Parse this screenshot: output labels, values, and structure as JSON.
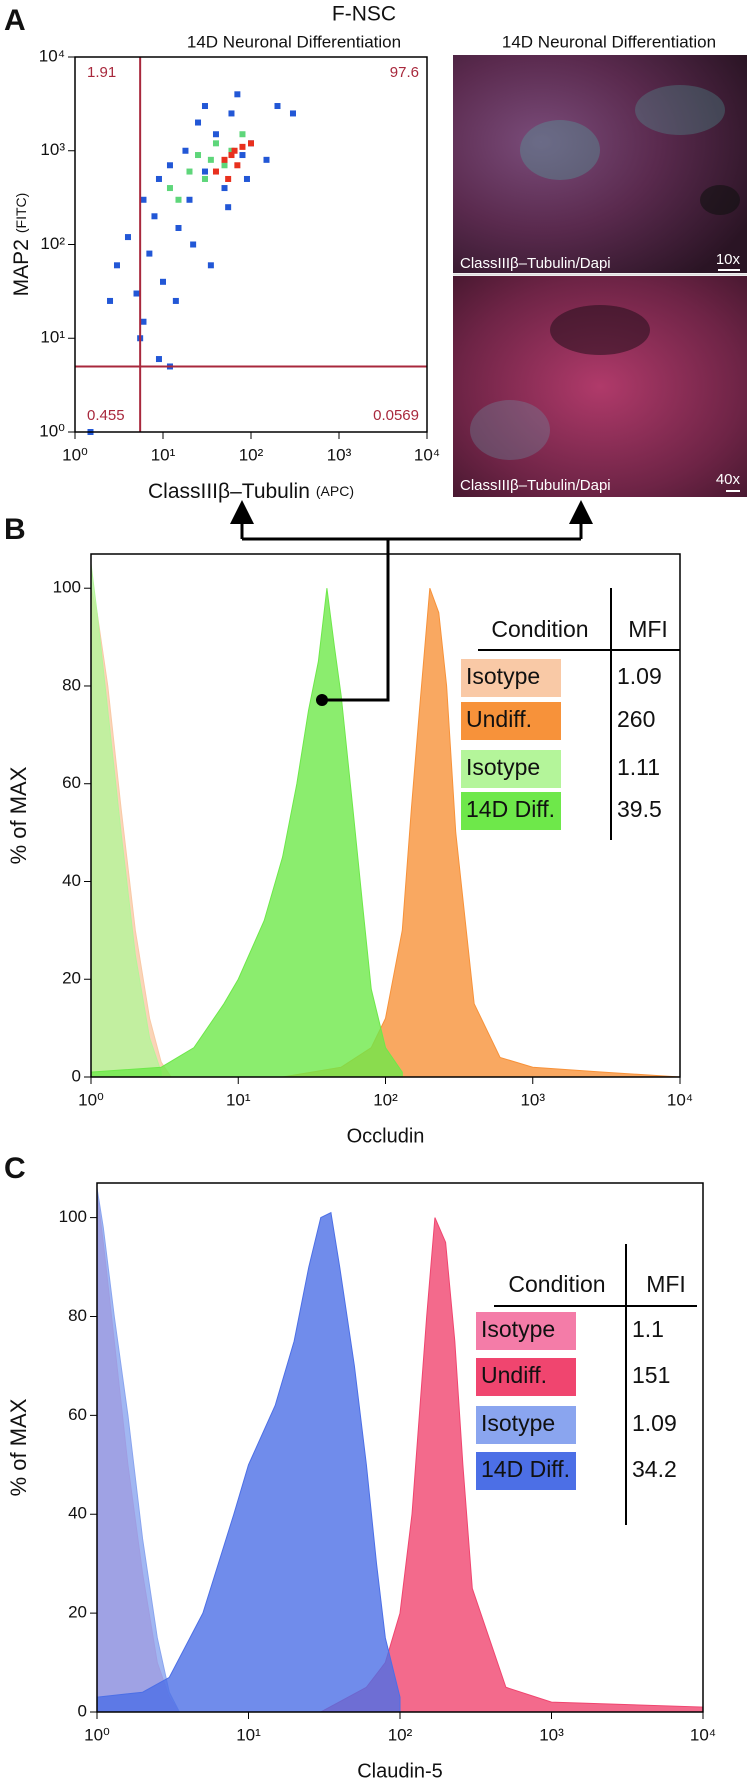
{
  "panel_labels": [
    "A",
    "B",
    "C"
  ],
  "micrographs": {
    "title": "14D Neuronal Differentiation",
    "images": [
      {
        "caption": "ClassIIIβ–Tubulin/Dapi",
        "scale": "10x"
      },
      {
        "caption": "ClassIIIβ–Tubulin/Dapi",
        "scale": "40x"
      }
    ]
  },
  "chart_data": [
    {
      "type": "scatter",
      "title": "F-NSC",
      "subtitle": "14D Neuronal Differentiation",
      "xlabel": "ClassIIIβ–Tubulin",
      "xlabel_unit": "(APC)",
      "ylabel": "MAP2",
      "ylabel_unit": "(FITC)",
      "log_x": true,
      "log_y": true,
      "xlim": [
        1,
        10000
      ],
      "ylim": [
        1,
        10000
      ],
      "xticks": [
        {
          "value": 1,
          "label": "10⁰"
        },
        {
          "value": 10,
          "label": "10¹"
        },
        {
          "value": 100,
          "label": "10²"
        },
        {
          "value": 1000,
          "label": "10³"
        },
        {
          "value": 10000,
          "label": "10⁴"
        }
      ],
      "yticks": [
        {
          "value": 1,
          "label": "10⁰"
        },
        {
          "value": 10,
          "label": "10¹"
        },
        {
          "value": 100,
          "label": "10²"
        },
        {
          "value": 1000,
          "label": "10³"
        },
        {
          "value": 10000,
          "label": "10⁴"
        }
      ],
      "gate_x": 5.5,
      "gate_y": 5,
      "gate_color": "#a8283c",
      "quadrant_values": {
        "upper_left": 1.91,
        "upper_right": 97.6,
        "lower_left": 0.455,
        "lower_right": 0.0569
      },
      "series": [
        {
          "color": "#2257d6",
          "x": [
            3,
            4,
            5,
            6,
            7,
            8,
            9,
            10,
            12,
            15,
            18,
            20,
            25,
            30,
            40,
            50,
            60,
            80,
            100,
            150,
            200,
            300,
            6,
            9,
            14,
            22,
            35,
            55,
            90,
            2.5,
            5.5,
            12,
            1.5,
            30,
            70
          ],
          "y": [
            60,
            120,
            30,
            300,
            80,
            200,
            500,
            40,
            700,
            150,
            1000,
            300,
            2000,
            600,
            1500,
            400,
            2500,
            900,
            1200,
            800,
            3000,
            2500,
            15,
            6,
            25,
            100,
            60,
            250,
            500,
            25,
            10,
            5,
            1,
            3000,
            4000
          ]
        },
        {
          "color": "#5ed67a",
          "x": [
            15,
            20,
            25,
            30,
            40,
            50,
            60,
            12,
            35,
            80
          ],
          "y": [
            300,
            600,
            900,
            500,
            1200,
            700,
            1000,
            400,
            800,
            1500
          ]
        },
        {
          "color": "#e8301e",
          "x": [
            40,
            50,
            60,
            70,
            80,
            100,
            55,
            65
          ],
          "y": [
            600,
            800,
            900,
            700,
            1100,
            1200,
            500,
            1000
          ]
        }
      ]
    },
    {
      "type": "area",
      "xlabel": "Occludin",
      "ylabel": "% of MAX",
      "log_x": true,
      "xlim": [
        1,
        10000
      ],
      "ylim": [
        0,
        107
      ],
      "xticks": [
        {
          "value": 1,
          "label": "10⁰"
        },
        {
          "value": 10,
          "label": "10¹"
        },
        {
          "value": 100,
          "label": "10²"
        },
        {
          "value": 1000,
          "label": "10³"
        },
        {
          "value": 10000,
          "label": "10⁴"
        }
      ],
      "yticks": [
        0,
        20,
        40,
        60,
        80,
        100
      ],
      "legend_headers": [
        "Condition",
        "MFI"
      ],
      "series": [
        {
          "name": "Isotype",
          "mfi": 1.09,
          "color": "#f9c9a6",
          "x": [
            1,
            1.1,
            1.3,
            1.6,
            2,
            2.5,
            3,
            3.5
          ],
          "y": [
            100,
            95,
            80,
            55,
            30,
            12,
            3,
            0
          ]
        },
        {
          "name": "Undiff.",
          "mfi": 260,
          "color": "#f7923a",
          "x": [
            20,
            50,
            80,
            100,
            130,
            150,
            170,
            200,
            230,
            260,
            300,
            400,
            600,
            1000,
            3000,
            10000
          ],
          "y": [
            0,
            2,
            6,
            12,
            30,
            55,
            75,
            100,
            95,
            80,
            50,
            15,
            4,
            2,
            1,
            0
          ]
        },
        {
          "name": "Isotype",
          "mfi": 1.11,
          "color": "#b4f59a",
          "x": [
            1,
            1.1,
            1.3,
            1.6,
            2,
            2.5,
            3
          ],
          "y": [
            105,
            95,
            75,
            50,
            25,
            8,
            1
          ]
        },
        {
          "name": "14D Diff.",
          "mfi": 39.5,
          "color": "#6ee84a",
          "x": [
            1,
            3,
            5,
            8,
            10,
            15,
            20,
            25,
            30,
            35,
            40,
            45,
            50,
            60,
            70,
            80,
            100,
            130
          ],
          "y": [
            1,
            2,
            6,
            15,
            20,
            32,
            45,
            60,
            75,
            85,
            100,
            88,
            78,
            55,
            35,
            18,
            6,
            1
          ]
        }
      ]
    },
    {
      "type": "area",
      "xlabel": "Claudin-5",
      "ylabel": "% of MAX",
      "log_x": true,
      "xlim": [
        1,
        10000
      ],
      "ylim": [
        0,
        107
      ],
      "xticks": [
        {
          "value": 1,
          "label": "10⁰"
        },
        {
          "value": 10,
          "label": "10¹"
        },
        {
          "value": 100,
          "label": "10²"
        },
        {
          "value": 1000,
          "label": "10³"
        },
        {
          "value": 10000,
          "label": "10⁴"
        }
      ],
      "yticks": [
        0,
        20,
        40,
        60,
        80,
        100
      ],
      "legend_headers": [
        "Condition",
        "MFI"
      ],
      "series": [
        {
          "name": "Isotype",
          "mfi": 1.1,
          "color": "#f47ca8",
          "x": [
            1,
            1.1,
            1.3,
            1.6,
            2,
            2.5,
            3,
            3.5
          ],
          "y": [
            105,
            95,
            75,
            50,
            28,
            10,
            3,
            0
          ]
        },
        {
          "name": "Undiff.",
          "mfi": 151,
          "color": "#f0456f",
          "x": [
            30,
            60,
            80,
            100,
            120,
            150,
            170,
            200,
            230,
            260,
            300,
            500,
            1000,
            10000
          ],
          "y": [
            0,
            5,
            10,
            20,
            40,
            80,
            100,
            95,
            75,
            50,
            25,
            5,
            2,
            1
          ]
        },
        {
          "name": "Isotype",
          "mfi": 1.09,
          "color": "#8aa5ef",
          "x": [
            1,
            1.1,
            1.3,
            1.6,
            2,
            2.5,
            3,
            3.5
          ],
          "y": [
            106,
            98,
            80,
            60,
            35,
            15,
            4,
            0
          ]
        },
        {
          "name": "14D Diff.",
          "mfi": 34.2,
          "color": "#4c6fe6",
          "x": [
            1,
            2,
            3,
            5,
            8,
            10,
            15,
            20,
            25,
            30,
            35,
            40,
            50,
            60,
            70,
            80,
            100
          ],
          "y": [
            3,
            4,
            7,
            20,
            40,
            50,
            62,
            75,
            90,
            100,
            101,
            90,
            70,
            50,
            30,
            15,
            3
          ]
        }
      ]
    }
  ]
}
